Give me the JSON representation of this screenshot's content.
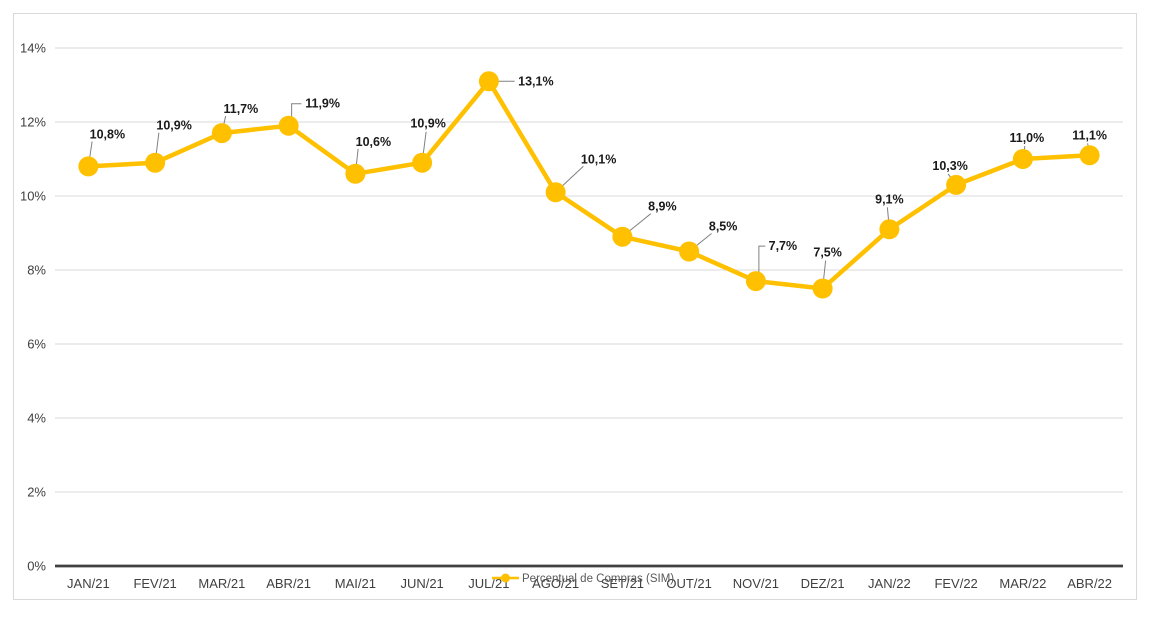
{
  "chart_data": {
    "type": "line",
    "title": "",
    "xlabel": "",
    "ylabel": "",
    "legend_label": "Percentual de Compras (SIM)",
    "legend_position": "bottom-center-overlapping-x-axis-labels",
    "grid": "horizontal",
    "ylim": [
      0,
      14
    ],
    "y_tick_step": 2,
    "y_ticks": [
      "0%",
      "2%",
      "4%",
      "6%",
      "8%",
      "10%",
      "12%",
      "14%"
    ],
    "categories": [
      "JAN/21",
      "FEV/21",
      "MAR/21",
      "ABR/21",
      "MAI/21",
      "JUN/21",
      "JUL/21",
      "AGO/21",
      "SET/21",
      "OUT/21",
      "NOV/21",
      "DEZ/21",
      "JAN/22",
      "FEV/22",
      "MAR/22",
      "ABR/22"
    ],
    "series": [
      {
        "name": "Percentual de Compras (SIM)",
        "values": [
          10.8,
          10.9,
          11.7,
          11.9,
          10.6,
          10.9,
          13.1,
          10.1,
          8.9,
          8.5,
          7.7,
          7.5,
          9.1,
          10.3,
          11.0,
          11.1
        ]
      }
    ],
    "data_labels": [
      "10,8%",
      "10,9%",
      "11,7%",
      "11,9%",
      "10,6%",
      "10,9%",
      "13,1%",
      "10,1%",
      "8,9%",
      "8,5%",
      "7,7%",
      "7,5%",
      "9,1%",
      "10,3%",
      "11,0%",
      "11,1%"
    ],
    "colors": {
      "series": "#FFC000",
      "gridline": "#D9D9D9",
      "axis_line": "#404040",
      "tick_text": "#404040",
      "data_label_text": "#1a1a1a",
      "leader_line": "#808080",
      "legend_text": "#595959",
      "frame_border": "#D9D9D9",
      "background": "#FFFFFF"
    }
  }
}
